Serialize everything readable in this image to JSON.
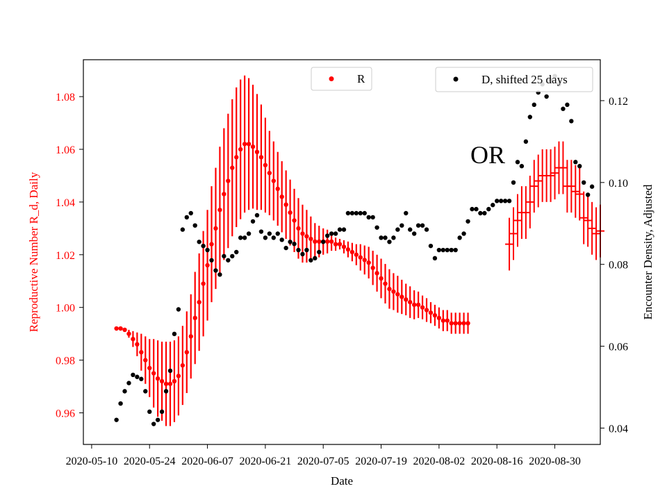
{
  "chart_data": {
    "type": "scatter",
    "xlabel": "Date",
    "ylabel_left": "Reproductive Number R_d, Daily",
    "ylabel_right": "Encounter Density, Adjusted",
    "annotation": "OR",
    "x_ticks": [
      "2020-05-10",
      "2020-05-24",
      "2020-06-07",
      "2020-06-21",
      "2020-07-05",
      "2020-07-19",
      "2020-08-02",
      "2020-08-16",
      "2020-08-30"
    ],
    "xlim": [
      "2020-05-08",
      "2020-09-10"
    ],
    "ylim_left": [
      0.948,
      1.094
    ],
    "ylim_right": [
      0.036,
      0.13
    ],
    "y_ticks_left": [
      "0.96",
      "0.98",
      "1.00",
      "1.02",
      "1.04",
      "1.06",
      "1.08"
    ],
    "y_ticks_right": [
      "0.04",
      "0.06",
      "0.08",
      "0.10",
      "0.12"
    ],
    "colors": {
      "R": "#ff0000",
      "D": "#000000",
      "left_axis_text": "#ff0000"
    },
    "legend": [
      {
        "label": "R",
        "color": "#ff0000",
        "placement": "top-center"
      },
      {
        "label": "D, shifted 25 days",
        "color": "#000000",
        "placement": "top-right"
      }
    ],
    "series_R": {
      "name": "R",
      "axis": "left",
      "start_date": "2020-05-16",
      "values": [
        0.992,
        0.992,
        0.9915,
        0.99,
        0.988,
        0.986,
        0.983,
        0.98,
        0.977,
        0.975,
        0.973,
        0.972,
        0.971,
        0.971,
        0.972,
        0.974,
        0.978,
        0.983,
        0.989,
        0.996,
        1.002,
        1.009,
        1.016,
        1.024,
        1.03,
        1.037,
        1.043,
        1.048,
        1.053,
        1.057,
        1.06,
        1.062,
        1.062,
        1.061,
        1.059,
        1.057,
        1.054,
        1.051,
        1.048,
        1.045,
        1.042,
        1.039,
        1.036,
        1.033,
        1.03,
        1.028,
        1.027,
        1.026,
        1.025,
        1.025,
        1.025,
        1.025,
        1.025,
        1.024,
        1.024,
        1.023,
        1.022,
        1.021,
        1.02,
        1.019,
        1.018,
        1.017,
        1.015,
        1.013,
        1.011,
        1.009,
        1.007,
        1.006,
        1.005,
        1.004,
        1.003,
        1.002,
        1.001,
        1.001,
        1.0,
        0.999,
        0.998,
        0.997,
        0.996,
        0.995,
        0.995,
        0.994,
        0.994,
        0.994,
        0.994,
        0.994
      ],
      "errors": [
        0.0,
        0.0,
        0.0005,
        0.0015,
        0.003,
        0.0045,
        0.007,
        0.009,
        0.011,
        0.013,
        0.0145,
        0.015,
        0.016,
        0.016,
        0.0155,
        0.015,
        0.015,
        0.0155,
        0.016,
        0.0175,
        0.0185,
        0.02,
        0.021,
        0.022,
        0.023,
        0.024,
        0.025,
        0.0255,
        0.026,
        0.0265,
        0.0265,
        0.026,
        0.025,
        0.0235,
        0.022,
        0.02,
        0.018,
        0.016,
        0.015,
        0.014,
        0.0135,
        0.013,
        0.0125,
        0.012,
        0.0115,
        0.011,
        0.01,
        0.0085,
        0.007,
        0.006,
        0.005,
        0.0045,
        0.0035,
        0.0025,
        0.002,
        0.0025,
        0.003,
        0.0035,
        0.004,
        0.005,
        0.0055,
        0.006,
        0.0065,
        0.007,
        0.0075,
        0.0075,
        0.0075,
        0.007,
        0.007,
        0.0065,
        0.006,
        0.006,
        0.0055,
        0.005,
        0.0045,
        0.0045,
        0.004,
        0.004,
        0.004,
        0.004,
        0.004,
        0.004,
        0.004,
        0.004,
        0.004,
        0.004
      ],
      "projection_start_date": "2020-08-19",
      "projection_values": [
        1.024,
        1.028,
        1.033,
        1.036,
        1.036,
        1.04,
        1.046,
        1.048,
        1.05,
        1.05,
        1.05,
        1.051,
        1.053,
        1.053,
        1.046,
        1.046,
        1.044,
        1.043,
        1.034,
        1.033,
        1.03,
        1.028,
        1.029
      ],
      "projection_errors": [
        0.004,
        0.004,
        0.004,
        0.004,
        0.004,
        0.004,
        0.004,
        0.004,
        0.004,
        0.004,
        0.004,
        0.004,
        0.004,
        0.004,
        0.004,
        0.004,
        0.004,
        0.004,
        0.004,
        0.004,
        0.004,
        0.004,
        0.004
      ]
    },
    "series_D": {
      "name": "D, shifted 25 days",
      "axis": "right",
      "start_date": "2020-05-16",
      "values": [
        0.042,
        0.046,
        0.049,
        0.051,
        0.053,
        0.0525,
        0.052,
        0.049,
        0.044,
        0.041,
        0.042,
        0.044,
        0.049,
        0.054,
        0.063,
        0.069,
        0.0885,
        0.0915,
        0.0925,
        0.0895,
        0.0855,
        0.0845,
        0.0835,
        0.081,
        0.0785,
        0.0775,
        0.082,
        0.081,
        0.082,
        0.083,
        0.0865,
        0.0865,
        0.0875,
        0.0905,
        0.092,
        0.088,
        0.0865,
        0.0875,
        0.0865,
        0.0875,
        0.086,
        0.084,
        0.0855,
        0.085,
        0.0835,
        0.0825,
        0.0835,
        0.081,
        0.0815,
        0.083,
        0.0855,
        0.087,
        0.0875,
        0.0875,
        0.0885,
        0.0885,
        0.0925,
        0.0925,
        0.0925,
        0.0925,
        0.0925,
        0.0915,
        0.0915,
        0.089,
        0.0865,
        0.0865,
        0.0855,
        0.0865,
        0.0885,
        0.0895,
        0.0925,
        0.0885,
        0.0875,
        0.0895,
        0.0895,
        0.0885,
        0.0845,
        0.0815,
        0.0835,
        0.0835,
        0.0835,
        0.0835,
        0.0835,
        0.0865,
        0.0875,
        0.0905,
        0.0935,
        0.0935,
        0.0925,
        0.0925,
        0.0935,
        0.0945,
        0.0955,
        0.0955,
        0.0955,
        0.0955,
        0.1,
        0.105,
        0.104,
        0.11,
        0.116,
        0.119,
        0.122,
        0.124,
        0.121,
        0.125,
        0.126,
        0.124,
        0.118,
        0.119,
        0.115,
        0.105,
        0.104,
        0.1,
        0.097,
        0.099
      ]
    }
  }
}
